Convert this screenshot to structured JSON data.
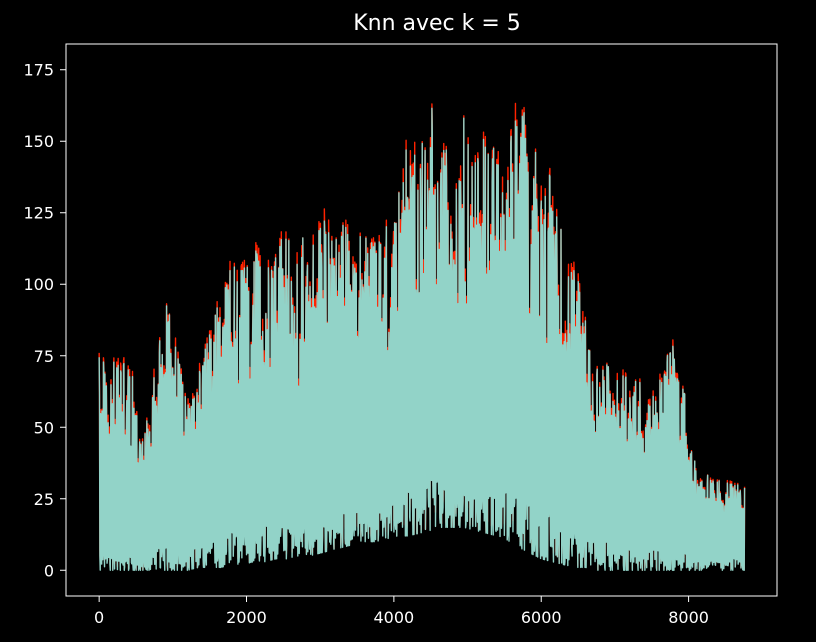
{
  "chart_data": {
    "type": "line",
    "title": "Knn avec k = 5",
    "xlabel": "",
    "ylabel": "",
    "xlim": [
      -450,
      9200
    ],
    "ylim": [
      -9,
      184
    ],
    "x_ticks": [
      0,
      2000,
      4000,
      6000,
      8000
    ],
    "y_ticks": [
      0,
      25,
      50,
      75,
      100,
      125,
      150,
      175
    ],
    "grid": false,
    "background": "#000000",
    "series": [
      {
        "color": "#ff2200",
        "kind": "true values"
      },
      {
        "color": "#92d3c8",
        "kind": "knn prediction"
      }
    ],
    "envelope": {
      "x": [
        0,
        150,
        300,
        450,
        600,
        750,
        900,
        1050,
        1200,
        1350,
        1500,
        1650,
        1800,
        1950,
        2100,
        2250,
        2400,
        2550,
        2700,
        2850,
        3000,
        3150,
        3300,
        3450,
        3600,
        3750,
        3900,
        4050,
        4200,
        4350,
        4500,
        4650,
        4800,
        4950,
        5100,
        5250,
        5400,
        5550,
        5700,
        5850,
        6000,
        6150,
        6300,
        6450,
        6600,
        6750,
        6900,
        7050,
        7200,
        7350,
        7500,
        7650,
        7800,
        7950,
        8100,
        8250,
        8400,
        8550,
        8700
      ],
      "upper": [
        78,
        72,
        80,
        70,
        45,
        78,
        95,
        85,
        60,
        72,
        85,
        100,
        112,
        108,
        120,
        112,
        118,
        122,
        115,
        118,
        130,
        122,
        128,
        120,
        118,
        122,
        128,
        135,
        158,
        145,
        170,
        150,
        152,
        160,
        145,
        160,
        150,
        155,
        170,
        158,
        145,
        140,
        118,
        112,
        110,
        75,
        75,
        72,
        68,
        70,
        72,
        70,
        88,
        62,
        38,
        35,
        32,
        33,
        30
      ],
      "lower": [
        0,
        0,
        0,
        0,
        0,
        0,
        0,
        0,
        0,
        1,
        1,
        1,
        2,
        2,
        3,
        3,
        4,
        4,
        5,
        5,
        6,
        7,
        8,
        9,
        10,
        10,
        11,
        12,
        12,
        13,
        14,
        15,
        15,
        15,
        14,
        13,
        12,
        10,
        8,
        6,
        4,
        3,
        2,
        1,
        1,
        0,
        0,
        0,
        0,
        0,
        0,
        0,
        0,
        0,
        0,
        0,
        0,
        0,
        0
      ]
    }
  }
}
